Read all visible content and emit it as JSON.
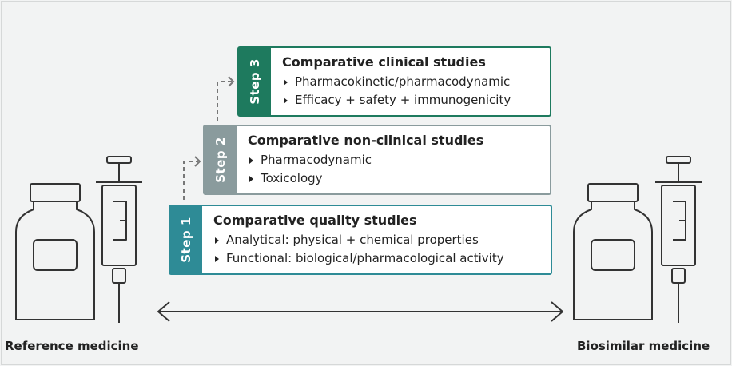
{
  "steps": [
    {
      "tab": "Step 1",
      "title": "Comparative quality studies",
      "items": [
        "Analytical: physical + chemical properties",
        "Functional: biological/pharmacological activity"
      ],
      "color": "#2e8b96"
    },
    {
      "tab": "Step 2",
      "title": "Comparative non-clinical studies",
      "items": [
        "Pharmacodynamic",
        "Toxicology"
      ],
      "color": "#8a9b9d"
    },
    {
      "tab": "Step 3",
      "title": "Comparative clinical studies",
      "items": [
        "Pharmacokinetic/pharmacodynamic",
        "Efficacy + safety + immunogenicity"
      ],
      "color": "#1e7a5e"
    }
  ],
  "labels": {
    "reference": "Reference medicine",
    "biosimilar": "Biosimilar medicine"
  },
  "icons": [
    "bottle-icon",
    "syringe-icon",
    "double-arrow-icon",
    "dashed-arrow-icon"
  ]
}
